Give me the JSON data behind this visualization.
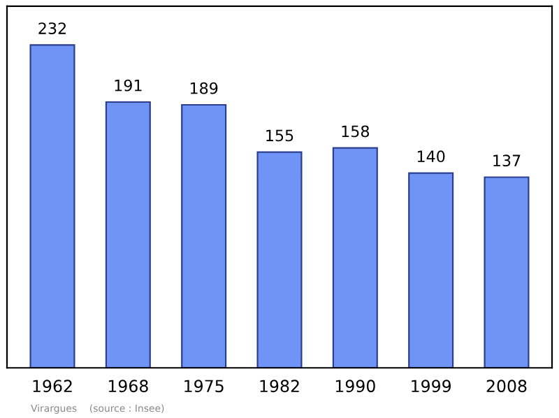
{
  "chart_data": {
    "type": "bar",
    "categories": [
      "1962",
      "1968",
      "1975",
      "1982",
      "1990",
      "1999",
      "2008"
    ],
    "values": [
      232,
      191,
      189,
      155,
      158,
      140,
      137
    ],
    "color": "#7094f5",
    "data_labels": true,
    "grid": false,
    "annotations": [
      "Virargues    (source : Insee)"
    ]
  }
}
